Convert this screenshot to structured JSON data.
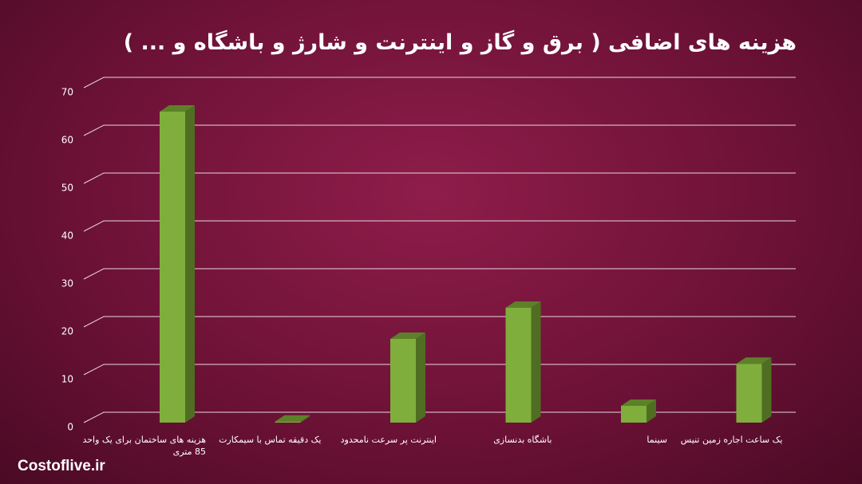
{
  "chart_data": {
    "type": "bar",
    "title": "هزینه های اضافی ( برق و گاز و اینترنت و شارژ و باشگاه و ... )",
    "categories": [
      "هزینه های ساختمان برای یک واحد 85 متری",
      "یک دقیقه تماس با سیمکارت",
      "اینترنت پر سرعت نامحدود",
      "باشگاه بدنسازی",
      "سینما",
      "یک ساعت اجاره زمین تنیس"
    ],
    "values": [
      65,
      0.2,
      17.5,
      24,
      3.5,
      12.3
    ],
    "color": "#7fae3c",
    "ylim": [
      0,
      70
    ],
    "yticks": [
      0,
      10,
      20,
      30,
      40,
      50,
      60,
      70
    ],
    "grid": true,
    "watermark": "Costoflive.ir"
  }
}
